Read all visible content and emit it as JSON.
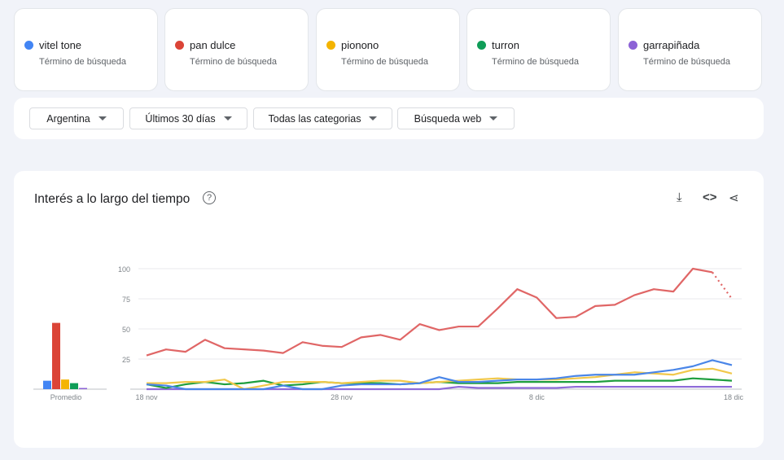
{
  "terms": [
    {
      "name": "vitel tone",
      "sub": "Término de búsqueda",
      "color": "#4285f4"
    },
    {
      "name": "pan dulce",
      "sub": "Término de búsqueda",
      "color": "#db4437"
    },
    {
      "name": "pionono",
      "sub": "Término de búsqueda",
      "color": "#f4b400"
    },
    {
      "name": "turron",
      "sub": "Término de búsqueda",
      "color": "#0f9d58"
    },
    {
      "name": "garrapiñada",
      "sub": "Término de búsqueda",
      "color": "#8c62d6"
    }
  ],
  "filters": [
    "Argentina",
    "Últimos 30 días",
    "Todas las categorias",
    "Búsqueda web"
  ],
  "panel": {
    "title": "Interés a lo largo del tiempo",
    "help": "?",
    "icons": [
      "download-icon",
      "embed-icon",
      "share-icon"
    ]
  },
  "chart_data": {
    "type": "line",
    "x_ticks": [
      "18 nov",
      "28 nov",
      "8 dic",
      "18 dic"
    ],
    "y_ticks": [
      "100",
      "75",
      "50",
      "25"
    ],
    "ylim": [
      0,
      100
    ],
    "grid": true,
    "x_start": "18 nov",
    "x_end": "18 dic",
    "series": [
      {
        "name": "vitel tone",
        "color": "#4a86e8",
        "values": [
          4,
          3,
          0,
          0,
          0,
          0,
          0,
          3,
          0,
          0,
          3,
          4,
          4,
          4,
          5,
          10,
          6,
          6,
          7,
          8,
          8,
          9,
          11,
          12,
          12,
          12,
          14,
          16,
          19,
          24,
          20
        ]
      },
      {
        "name": "pan dulce",
        "color": "#e06666",
        "values": [
          28,
          33,
          31,
          41,
          34,
          33,
          32,
          30,
          39,
          36,
          35,
          43,
          45,
          41,
          54,
          49,
          52,
          52,
          67,
          83,
          76,
          59,
          60,
          69,
          70,
          78,
          83,
          81,
          100,
          97,
          75
        ],
        "partial_last": true
      },
      {
        "name": "pionono",
        "color": "#f1c84b",
        "values": [
          5,
          5,
          6,
          6,
          8,
          0,
          3,
          6,
          6,
          6,
          5,
          6,
          7,
          7,
          5,
          6,
          7,
          8,
          9,
          8,
          8,
          8,
          9,
          10,
          12,
          14,
          13,
          12,
          16,
          17,
          13
        ]
      },
      {
        "name": "turron",
        "color": "#1e9e3e",
        "values": [
          4,
          1,
          4,
          6,
          4,
          5,
          7,
          3,
          4,
          6,
          5,
          5,
          5,
          4,
          5,
          6,
          5,
          5,
          5,
          6,
          6,
          6,
          6,
          6,
          7,
          7,
          7,
          7,
          9,
          8,
          7
        ]
      },
      {
        "name": "garrapiñada",
        "color": "#8e6bd8",
        "values": [
          0,
          0,
          0,
          0,
          0,
          0,
          0,
          0,
          0,
          0,
          0,
          0,
          0,
          0,
          0,
          0,
          2,
          1,
          1,
          1,
          1,
          1,
          2,
          2,
          2,
          2,
          2,
          2,
          2,
          2,
          2
        ]
      }
    ],
    "averages": {
      "label": "Promedio",
      "values": [
        7,
        55,
        8,
        5,
        1
      ]
    }
  }
}
